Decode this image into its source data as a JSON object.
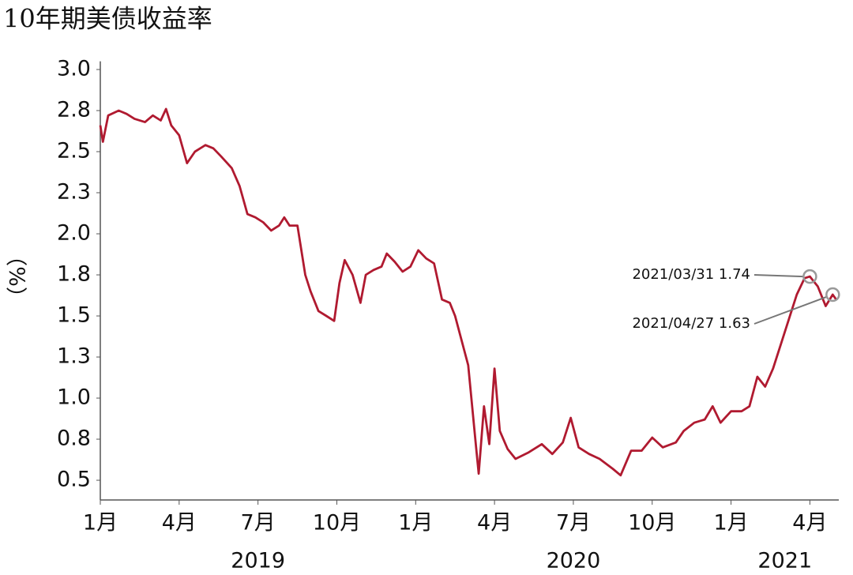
{
  "chart_data": {
    "type": "line",
    "title": "10年期美债收益率",
    "y_label": "（%）",
    "color": "#b01a30",
    "x": [
      0.0,
      0.1,
      0.3,
      0.7,
      1.0,
      1.3,
      1.7,
      2.0,
      2.3,
      2.5,
      2.7,
      3.0,
      3.3,
      3.6,
      4.0,
      4.3,
      4.6,
      5.0,
      5.3,
      5.6,
      5.9,
      6.2,
      6.5,
      6.8,
      7.0,
      7.2,
      7.5,
      7.8,
      8.0,
      8.3,
      8.6,
      8.9,
      9.1,
      9.3,
      9.6,
      9.9,
      10.1,
      10.4,
      10.7,
      10.9,
      11.2,
      11.5,
      11.8,
      12.1,
      12.4,
      12.7,
      13.0,
      13.3,
      13.5,
      14.0,
      14.3,
      14.4,
      14.6,
      14.8,
      15.0,
      15.2,
      15.5,
      15.8,
      16.3,
      16.8,
      17.2,
      17.6,
      17.9,
      18.2,
      18.6,
      19.0,
      19.5,
      19.8,
      20.2,
      20.6,
      21.0,
      21.4,
      21.9,
      22.2,
      22.6,
      23.0,
      23.3,
      23.6,
      24.0,
      24.4,
      24.7,
      25.0,
      25.3,
      25.6,
      25.9,
      26.2,
      26.5,
      26.8,
      27.0,
      27.3,
      27.6,
      27.87,
      28.0
    ],
    "values": [
      2.66,
      2.56,
      2.72,
      2.75,
      2.73,
      2.7,
      2.68,
      2.72,
      2.69,
      2.76,
      2.66,
      2.6,
      2.43,
      2.5,
      2.54,
      2.52,
      2.47,
      2.4,
      2.29,
      2.12,
      2.1,
      2.07,
      2.02,
      2.05,
      2.1,
      2.05,
      2.05,
      1.75,
      1.65,
      1.53,
      1.5,
      1.47,
      1.7,
      1.84,
      1.75,
      1.58,
      1.75,
      1.78,
      1.8,
      1.88,
      1.83,
      1.77,
      1.8,
      1.9,
      1.85,
      1.82,
      1.6,
      1.58,
      1.5,
      1.2,
      0.7,
      0.54,
      0.95,
      0.72,
      1.18,
      0.8,
      0.69,
      0.63,
      0.67,
      0.72,
      0.66,
      0.73,
      0.88,
      0.7,
      0.66,
      0.63,
      0.57,
      0.53,
      0.68,
      0.68,
      0.76,
      0.7,
      0.73,
      0.8,
      0.85,
      0.87,
      0.95,
      0.85,
      0.92,
      0.92,
      0.95,
      1.13,
      1.07,
      1.18,
      1.33,
      1.48,
      1.63,
      1.73,
      1.74,
      1.68,
      1.56,
      1.63,
      1.6
    ],
    "xlim": [
      0,
      28.1
    ],
    "xticks": [
      {
        "value": 0,
        "label": "1月"
      },
      {
        "value": 3,
        "label": "4月"
      },
      {
        "value": 6,
        "label": "7月"
      },
      {
        "value": 9,
        "label": "10月"
      },
      {
        "value": 12,
        "label": "1月"
      },
      {
        "value": 15,
        "label": "4月"
      },
      {
        "value": 18,
        "label": "7月"
      },
      {
        "value": 21,
        "label": "10月"
      },
      {
        "value": 24,
        "label": "1月"
      },
      {
        "value": 27,
        "label": "4月"
      }
    ],
    "year_labels": [
      "2019",
      "2020",
      "2021"
    ],
    "ylim": [
      0.38,
      3.05
    ],
    "yticks": [
      0.5,
      {
        "value": 0.75,
        "label": "0.8"
      },
      {
        "value": 1.0,
        "label": "1.0"
      },
      {
        "value": 1.25,
        "label": "1.3"
      },
      1.5,
      {
        "value": 1.75,
        "label": "1.8"
      },
      {
        "value": 2.0,
        "label": "2.0"
      },
      {
        "value": 2.25,
        "label": "2.3"
      },
      2.5,
      {
        "value": 2.75,
        "label": "2.8"
      },
      {
        "value": 3.0,
        "label": "3.0"
      }
    ],
    "annotations": [
      {
        "text": "2021/03/31 1.74",
        "x": 27.0,
        "y": 1.74
      },
      {
        "text": "2021/04/27 1.63",
        "x": 27.87,
        "y": 1.63
      }
    ]
  }
}
